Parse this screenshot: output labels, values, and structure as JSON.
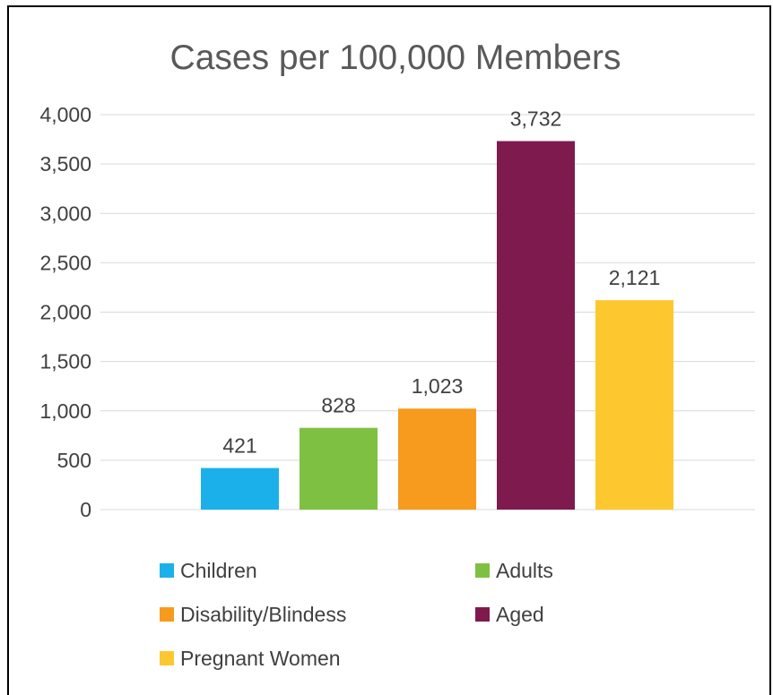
{
  "chart_data": {
    "type": "bar",
    "title": "Cases per 100,000 Members",
    "xlabel": "",
    "ylabel": "",
    "ylim": [
      0,
      4000
    ],
    "y_ticks": [
      0,
      500,
      1000,
      1500,
      2000,
      2500,
      3000,
      3500,
      4000
    ],
    "y_tick_labels": [
      "0",
      "500",
      "1,000",
      "1,500",
      "2,000",
      "2,500",
      "3,000",
      "3,500",
      "4,000"
    ],
    "grid": true,
    "legend_position": "bottom",
    "series": [
      {
        "name": "Children",
        "value": 421,
        "label": "421",
        "color": "#1cb0ea"
      },
      {
        "name": "Adults",
        "value": 828,
        "label": "828",
        "color": "#7ec142"
      },
      {
        "name": "Disability/Blindess",
        "value": 1023,
        "label": "1,023",
        "color": "#f79b1e"
      },
      {
        "name": "Aged",
        "value": 3732,
        "label": "3,732",
        "color": "#7f1a4f"
      },
      {
        "name": "Pregnant Women",
        "value": 2121,
        "label": "2,121",
        "color": "#fdc82f"
      }
    ]
  }
}
